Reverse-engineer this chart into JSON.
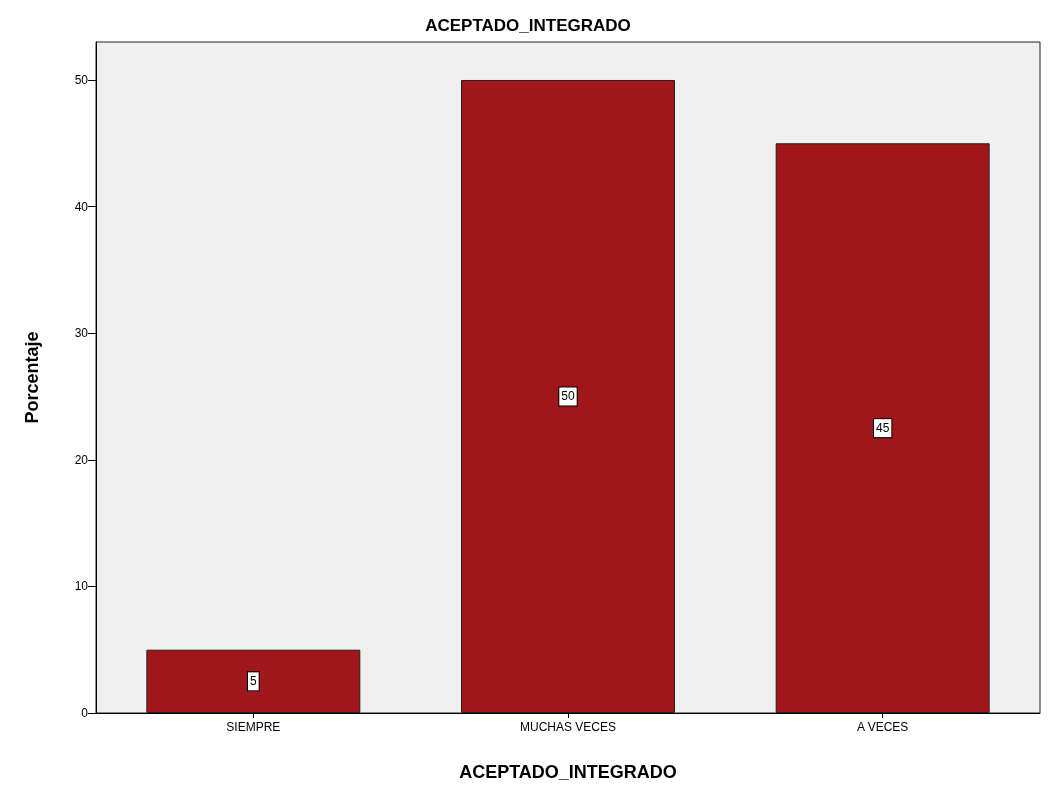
{
  "chart_data": {
    "type": "bar",
    "title": "ACEPTADO_INTEGRADO",
    "xlabel": "ACEPTADO_INTEGRADO",
    "ylabel": "Porcentaje",
    "categories": [
      "SIEMPRE",
      "MUCHAS VECES",
      "A VECES"
    ],
    "values": [
      5,
      50,
      45
    ],
    "color": "#a0161a",
    "ylim": [
      0,
      53
    ],
    "yticks": [
      0,
      10,
      20,
      30,
      40,
      50
    ],
    "grid": false,
    "data_labels": true
  }
}
